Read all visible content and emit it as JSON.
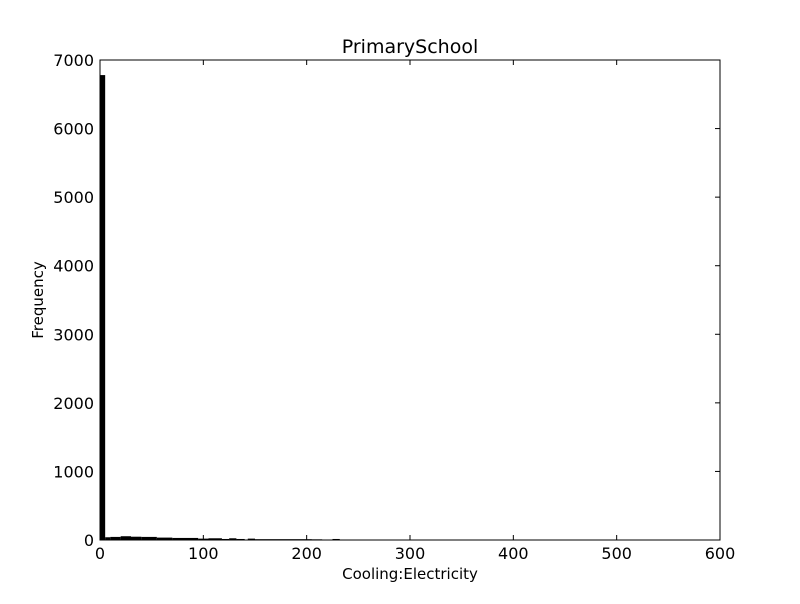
{
  "chart_data": {
    "type": "bar",
    "title": "PrimarySchool",
    "xlabel": "Cooling:Electricity",
    "ylabel": "Frequency",
    "xlim": [
      0,
      600
    ],
    "ylim": [
      0,
      7000
    ],
    "grid": false,
    "x_ticks": [
      0,
      100,
      200,
      300,
      400,
      500,
      600
    ],
    "y_ticks": [
      0,
      1000,
      2000,
      3000,
      4000,
      5000,
      6000,
      7000
    ],
    "x_tick_labels": [
      "0",
      "100",
      "200",
      "300",
      "400",
      "500",
      "600"
    ],
    "y_tick_labels": [
      "0",
      "1000",
      "2000",
      "3000",
      "4000",
      "5000",
      "6000",
      "7000"
    ],
    "bar_color": "#000000",
    "bins": [
      {
        "x0": 0,
        "x1": 5,
        "value": 6780
      },
      {
        "x0": 5,
        "x1": 10,
        "value": 40
      },
      {
        "x0": 10,
        "x1": 20,
        "value": 45
      },
      {
        "x0": 20,
        "x1": 30,
        "value": 55
      },
      {
        "x0": 30,
        "x1": 40,
        "value": 48
      },
      {
        "x0": 40,
        "x1": 55,
        "value": 45
      },
      {
        "x0": 55,
        "x1": 70,
        "value": 35
      },
      {
        "x0": 70,
        "x1": 95,
        "value": 30
      },
      {
        "x0": 95,
        "x1": 105,
        "value": 20
      },
      {
        "x0": 105,
        "x1": 118,
        "value": 25
      },
      {
        "x0": 118,
        "x1": 125,
        "value": 15
      },
      {
        "x0": 125,
        "x1": 132,
        "value": 25
      },
      {
        "x0": 132,
        "x1": 140,
        "value": 15
      },
      {
        "x0": 143,
        "x1": 150,
        "value": 20
      },
      {
        "x0": 150,
        "x1": 205,
        "value": 12
      },
      {
        "x0": 205,
        "x1": 215,
        "value": 10
      },
      {
        "x0": 220,
        "x1": 225,
        "value": 5
      },
      {
        "x0": 225,
        "x1": 232,
        "value": 15
      },
      {
        "x0": 232,
        "x1": 345,
        "value": 7
      },
      {
        "x0": 348,
        "x1": 352,
        "value": 4
      },
      {
        "x0": 355,
        "x1": 362,
        "value": 6
      },
      {
        "x0": 368,
        "x1": 375,
        "value": 5
      },
      {
        "x0": 383,
        "x1": 390,
        "value": 6
      },
      {
        "x0": 430,
        "x1": 438,
        "value": 5
      },
      {
        "x0": 438,
        "x1": 545,
        "value": 3
      }
    ]
  }
}
